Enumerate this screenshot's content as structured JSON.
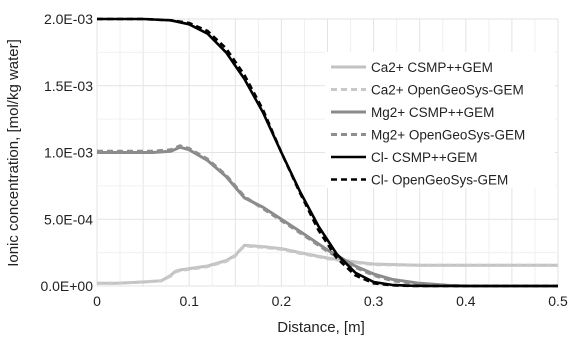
{
  "chart_data": {
    "type": "line",
    "title": "",
    "xlabel": "Distance, [m]",
    "ylabel": "Ionic concentration, [mol/kg water]",
    "xlim": [
      0,
      0.5
    ],
    "ylim": [
      0,
      0.002
    ],
    "x_ticks": [
      0,
      0.1,
      0.2,
      0.3,
      0.4,
      0.5
    ],
    "x_tick_labels": [
      "0",
      "0.1",
      "0.2",
      "0.3",
      "0.4",
      "0.5"
    ],
    "y_ticks": [
      0,
      0.0005,
      0.001,
      0.0015,
      0.002
    ],
    "y_tick_labels": [
      "0.0E+00",
      "5.0E-04",
      "1.0E-03",
      "1.5E-03",
      "2.0E-03"
    ],
    "grid": true,
    "legend_position": "top-right",
    "series": [
      {
        "name": "Ca2+ CSMP++GEM",
        "color": "#c2c2c2",
        "dash": "solid",
        "x": [
          0,
          0.02,
          0.05,
          0.07,
          0.08,
          0.085,
          0.09,
          0.1,
          0.12,
          0.14,
          0.15,
          0.155,
          0.16,
          0.18,
          0.2,
          0.22,
          0.25,
          0.28,
          0.3,
          0.35,
          0.4,
          0.45,
          0.5
        ],
        "y": [
          2e-05,
          2e-05,
          3e-05,
          4e-05,
          8e-05,
          0.00011,
          0.00012,
          0.00013,
          0.00015,
          0.00019,
          0.00023,
          0.00027,
          0.000305,
          0.000295,
          0.00028,
          0.00025,
          0.00021,
          0.00018,
          0.000165,
          0.000155,
          0.000155,
          0.000155,
          0.000155
        ]
      },
      {
        "name": "Ca2+ OpenGeoSys-GEM",
        "color": "#c8c8c8",
        "dash": "6,4",
        "x": [
          0,
          0.02,
          0.05,
          0.07,
          0.08,
          0.085,
          0.09,
          0.1,
          0.12,
          0.14,
          0.15,
          0.155,
          0.16,
          0.18,
          0.2,
          0.22,
          0.25,
          0.28,
          0.3,
          0.35,
          0.4,
          0.45,
          0.5
        ],
        "y": [
          2e-05,
          2e-05,
          3e-05,
          4e-05,
          7.5e-05,
          0.000105,
          0.000115,
          0.000125,
          0.000145,
          0.000185,
          0.000225,
          0.000265,
          0.0003,
          0.00029,
          0.000275,
          0.000245,
          0.000205,
          0.000175,
          0.00016,
          0.000155,
          0.000155,
          0.000155,
          0.000155
        ]
      },
      {
        "name": "Mg2+ CSMP++GEM",
        "color": "#8a8a8a",
        "dash": "solid",
        "x": [
          0,
          0.03,
          0.06,
          0.08,
          0.09,
          0.1,
          0.12,
          0.14,
          0.16,
          0.18,
          0.2,
          0.22,
          0.25,
          0.28,
          0.3,
          0.32,
          0.35,
          0.38,
          0.4,
          0.45,
          0.5
        ],
        "y": [
          0.001,
          0.001,
          0.001,
          0.00101,
          0.00104,
          0.00102,
          0.00094,
          0.00082,
          0.00066,
          0.00059,
          0.0005,
          0.00041,
          0.00027,
          0.00015,
          9e-05,
          5e-05,
          2e-05,
          5e-06,
          0,
          0,
          0
        ]
      },
      {
        "name": "Mg2+ OpenGeoSys-GEM",
        "color": "#8e8e8e",
        "dash": "6,4",
        "x": [
          0,
          0.03,
          0.06,
          0.08,
          0.09,
          0.1,
          0.12,
          0.14,
          0.16,
          0.18,
          0.2,
          0.22,
          0.25,
          0.28,
          0.3,
          0.32,
          0.35,
          0.38,
          0.4,
          0.45,
          0.5
        ],
        "y": [
          0.00101,
          0.00101,
          0.00101,
          0.00102,
          0.00105,
          0.00103,
          0.00095,
          0.00083,
          0.00067,
          0.00058,
          0.00049,
          0.0004,
          0.00026,
          0.00014,
          8e-05,
          4e-05,
          1.5e-05,
          3e-06,
          0,
          0,
          0
        ]
      },
      {
        "name": "Cl- CSMP++GEM",
        "color": "#000000",
        "dash": "solid",
        "x": [
          0,
          0.05,
          0.08,
          0.1,
          0.12,
          0.14,
          0.16,
          0.18,
          0.2,
          0.22,
          0.24,
          0.26,
          0.28,
          0.3,
          0.32,
          0.34,
          0.36,
          0.4,
          0.45,
          0.5
        ],
        "y": [
          0.002,
          0.002,
          0.00199,
          0.00196,
          0.00189,
          0.00175,
          0.00155,
          0.0013,
          0.001,
          0.00071,
          0.00045,
          0.00024,
          0.0001,
          3e-05,
          8e-06,
          2e-06,
          0,
          0,
          0,
          0
        ]
      },
      {
        "name": "Cl- OpenGeoSys-GEM",
        "color": "#000000",
        "dash": "6,4",
        "x": [
          0,
          0.05,
          0.08,
          0.1,
          0.12,
          0.14,
          0.16,
          0.18,
          0.2,
          0.22,
          0.24,
          0.26,
          0.28,
          0.3,
          0.32,
          0.34,
          0.36,
          0.4,
          0.45,
          0.5
        ],
        "y": [
          0.002,
          0.002,
          0.00199,
          0.00197,
          0.00191,
          0.00178,
          0.00158,
          0.00132,
          0.001,
          0.0007,
          0.00042,
          0.00021,
          8e-05,
          2e-05,
          5e-06,
          1e-06,
          0,
          0,
          0,
          0
        ]
      }
    ]
  }
}
